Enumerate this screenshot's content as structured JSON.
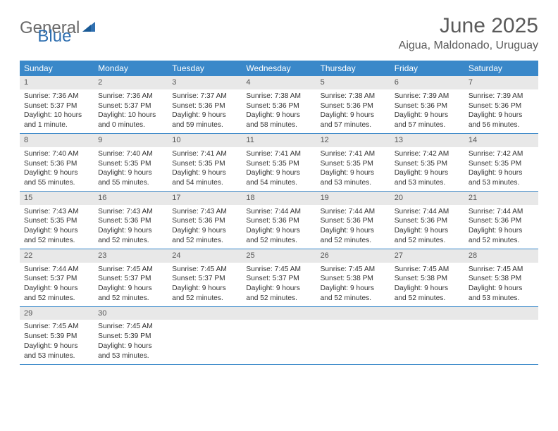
{
  "logo": {
    "general": "General",
    "blue": "Blue"
  },
  "title": "June 2025",
  "location": "Aigua, Maldonado, Uruguay",
  "colors": {
    "header_bg": "#3a88c9",
    "header_text": "#ffffff",
    "daynum_bg": "#e8e8e8",
    "daynum_text": "#555555",
    "body_text": "#333333",
    "title_text": "#5a5a5a",
    "logo_gray": "#6a6a6a",
    "logo_blue": "#2f6fb0",
    "row_border": "#3a88c9"
  },
  "weekdays": [
    "Sunday",
    "Monday",
    "Tuesday",
    "Wednesday",
    "Thursday",
    "Friday",
    "Saturday"
  ],
  "weeks": [
    [
      {
        "n": "1",
        "sunrise": "Sunrise: 7:36 AM",
        "sunset": "Sunset: 5:37 PM",
        "day1": "Daylight: 10 hours",
        "day2": "and 1 minute."
      },
      {
        "n": "2",
        "sunrise": "Sunrise: 7:36 AM",
        "sunset": "Sunset: 5:37 PM",
        "day1": "Daylight: 10 hours",
        "day2": "and 0 minutes."
      },
      {
        "n": "3",
        "sunrise": "Sunrise: 7:37 AM",
        "sunset": "Sunset: 5:36 PM",
        "day1": "Daylight: 9 hours",
        "day2": "and 59 minutes."
      },
      {
        "n": "4",
        "sunrise": "Sunrise: 7:38 AM",
        "sunset": "Sunset: 5:36 PM",
        "day1": "Daylight: 9 hours",
        "day2": "and 58 minutes."
      },
      {
        "n": "5",
        "sunrise": "Sunrise: 7:38 AM",
        "sunset": "Sunset: 5:36 PM",
        "day1": "Daylight: 9 hours",
        "day2": "and 57 minutes."
      },
      {
        "n": "6",
        "sunrise": "Sunrise: 7:39 AM",
        "sunset": "Sunset: 5:36 PM",
        "day1": "Daylight: 9 hours",
        "day2": "and 57 minutes."
      },
      {
        "n": "7",
        "sunrise": "Sunrise: 7:39 AM",
        "sunset": "Sunset: 5:36 PM",
        "day1": "Daylight: 9 hours",
        "day2": "and 56 minutes."
      }
    ],
    [
      {
        "n": "8",
        "sunrise": "Sunrise: 7:40 AM",
        "sunset": "Sunset: 5:36 PM",
        "day1": "Daylight: 9 hours",
        "day2": "and 55 minutes."
      },
      {
        "n": "9",
        "sunrise": "Sunrise: 7:40 AM",
        "sunset": "Sunset: 5:35 PM",
        "day1": "Daylight: 9 hours",
        "day2": "and 55 minutes."
      },
      {
        "n": "10",
        "sunrise": "Sunrise: 7:41 AM",
        "sunset": "Sunset: 5:35 PM",
        "day1": "Daylight: 9 hours",
        "day2": "and 54 minutes."
      },
      {
        "n": "11",
        "sunrise": "Sunrise: 7:41 AM",
        "sunset": "Sunset: 5:35 PM",
        "day1": "Daylight: 9 hours",
        "day2": "and 54 minutes."
      },
      {
        "n": "12",
        "sunrise": "Sunrise: 7:41 AM",
        "sunset": "Sunset: 5:35 PM",
        "day1": "Daylight: 9 hours",
        "day2": "and 53 minutes."
      },
      {
        "n": "13",
        "sunrise": "Sunrise: 7:42 AM",
        "sunset": "Sunset: 5:35 PM",
        "day1": "Daylight: 9 hours",
        "day2": "and 53 minutes."
      },
      {
        "n": "14",
        "sunrise": "Sunrise: 7:42 AM",
        "sunset": "Sunset: 5:35 PM",
        "day1": "Daylight: 9 hours",
        "day2": "and 53 minutes."
      }
    ],
    [
      {
        "n": "15",
        "sunrise": "Sunrise: 7:43 AM",
        "sunset": "Sunset: 5:35 PM",
        "day1": "Daylight: 9 hours",
        "day2": "and 52 minutes."
      },
      {
        "n": "16",
        "sunrise": "Sunrise: 7:43 AM",
        "sunset": "Sunset: 5:36 PM",
        "day1": "Daylight: 9 hours",
        "day2": "and 52 minutes."
      },
      {
        "n": "17",
        "sunrise": "Sunrise: 7:43 AM",
        "sunset": "Sunset: 5:36 PM",
        "day1": "Daylight: 9 hours",
        "day2": "and 52 minutes."
      },
      {
        "n": "18",
        "sunrise": "Sunrise: 7:44 AM",
        "sunset": "Sunset: 5:36 PM",
        "day1": "Daylight: 9 hours",
        "day2": "and 52 minutes."
      },
      {
        "n": "19",
        "sunrise": "Sunrise: 7:44 AM",
        "sunset": "Sunset: 5:36 PM",
        "day1": "Daylight: 9 hours",
        "day2": "and 52 minutes."
      },
      {
        "n": "20",
        "sunrise": "Sunrise: 7:44 AM",
        "sunset": "Sunset: 5:36 PM",
        "day1": "Daylight: 9 hours",
        "day2": "and 52 minutes."
      },
      {
        "n": "21",
        "sunrise": "Sunrise: 7:44 AM",
        "sunset": "Sunset: 5:36 PM",
        "day1": "Daylight: 9 hours",
        "day2": "and 52 minutes."
      }
    ],
    [
      {
        "n": "22",
        "sunrise": "Sunrise: 7:44 AM",
        "sunset": "Sunset: 5:37 PM",
        "day1": "Daylight: 9 hours",
        "day2": "and 52 minutes."
      },
      {
        "n": "23",
        "sunrise": "Sunrise: 7:45 AM",
        "sunset": "Sunset: 5:37 PM",
        "day1": "Daylight: 9 hours",
        "day2": "and 52 minutes."
      },
      {
        "n": "24",
        "sunrise": "Sunrise: 7:45 AM",
        "sunset": "Sunset: 5:37 PM",
        "day1": "Daylight: 9 hours",
        "day2": "and 52 minutes."
      },
      {
        "n": "25",
        "sunrise": "Sunrise: 7:45 AM",
        "sunset": "Sunset: 5:37 PM",
        "day1": "Daylight: 9 hours",
        "day2": "and 52 minutes."
      },
      {
        "n": "26",
        "sunrise": "Sunrise: 7:45 AM",
        "sunset": "Sunset: 5:38 PM",
        "day1": "Daylight: 9 hours",
        "day2": "and 52 minutes."
      },
      {
        "n": "27",
        "sunrise": "Sunrise: 7:45 AM",
        "sunset": "Sunset: 5:38 PM",
        "day1": "Daylight: 9 hours",
        "day2": "and 52 minutes."
      },
      {
        "n": "28",
        "sunrise": "Sunrise: 7:45 AM",
        "sunset": "Sunset: 5:38 PM",
        "day1": "Daylight: 9 hours",
        "day2": "and 53 minutes."
      }
    ],
    [
      {
        "n": "29",
        "sunrise": "Sunrise: 7:45 AM",
        "sunset": "Sunset: 5:39 PM",
        "day1": "Daylight: 9 hours",
        "day2": "and 53 minutes."
      },
      {
        "n": "30",
        "sunrise": "Sunrise: 7:45 AM",
        "sunset": "Sunset: 5:39 PM",
        "day1": "Daylight: 9 hours",
        "day2": "and 53 minutes."
      },
      {
        "empty": true
      },
      {
        "empty": true
      },
      {
        "empty": true
      },
      {
        "empty": true
      },
      {
        "empty": true
      }
    ]
  ]
}
